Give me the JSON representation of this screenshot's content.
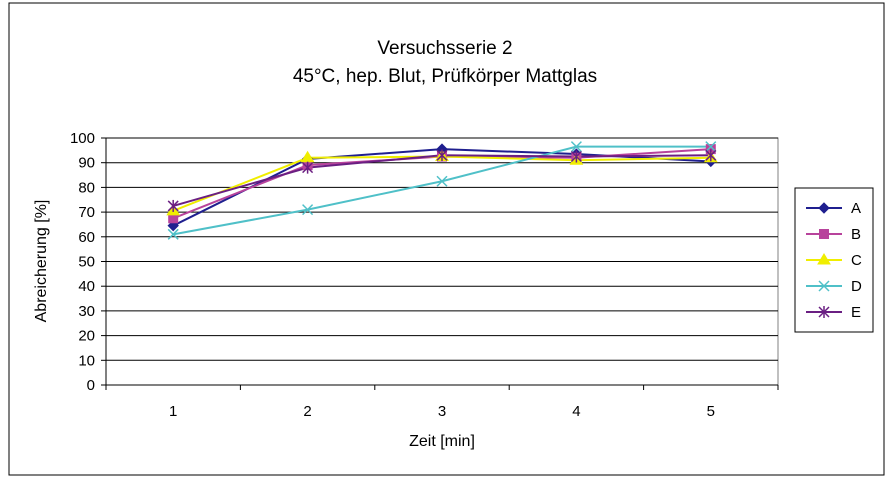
{
  "chart_data": {
    "type": "line",
    "title": "Versuchsserie 2",
    "subtitle": "45°C, hep. Blut, Prüfkörper Mattglas",
    "xlabel": "Zeit [min]",
    "ylabel": "Abreicherung [%]",
    "categories": [
      "1",
      "2",
      "3",
      "4",
      "5"
    ],
    "ylim": [
      0,
      100
    ],
    "yticks": [
      "0",
      "10",
      "20",
      "30",
      "40",
      "50",
      "60",
      "70",
      "80",
      "90",
      "100"
    ],
    "grid": true,
    "legend_position": "right",
    "series": [
      {
        "name": "A",
        "values": [
          64.5,
          91.5,
          95.5,
          93.5,
          90.5
        ],
        "color": "#1f1f8f",
        "marker": "diamond"
      },
      {
        "name": "B",
        "values": [
          67.5,
          89,
          92.5,
          92,
          95.5
        ],
        "color": "#b8439c",
        "marker": "square"
      },
      {
        "name": "C",
        "values": [
          70.5,
          92,
          92.5,
          91,
          92
        ],
        "color": "#f0ee00",
        "marker": "triangle"
      },
      {
        "name": "D",
        "values": [
          61,
          71,
          82.5,
          96.5,
          96.5
        ],
        "color": "#4fc0c8",
        "marker": "x"
      },
      {
        "name": "E",
        "values": [
          72.5,
          88,
          93,
          92.5,
          93
        ],
        "color": "#6a1f82",
        "marker": "star"
      }
    ]
  }
}
